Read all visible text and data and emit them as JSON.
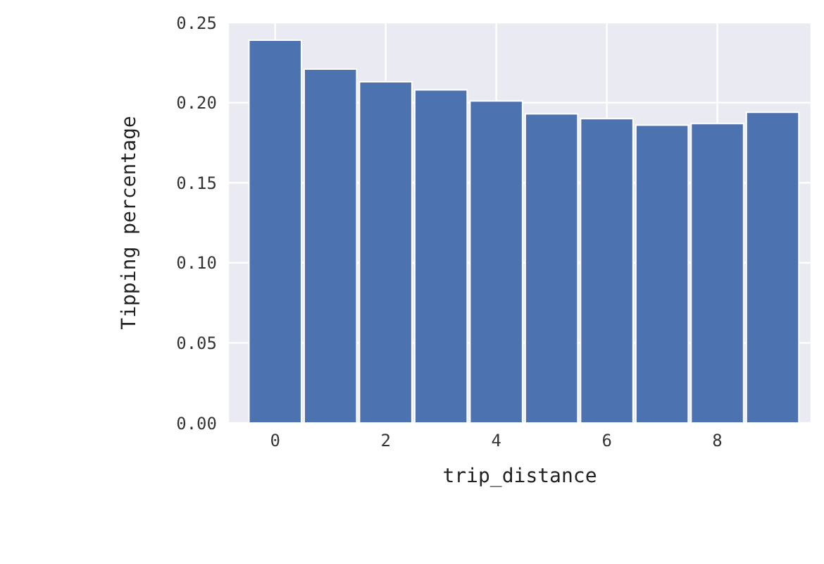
{
  "chart_data": {
    "type": "bar",
    "xlabel": "trip_distance",
    "ylabel": "Tipping percentage",
    "x": [
      0,
      1,
      2,
      3,
      4,
      5,
      6,
      7,
      8,
      9
    ],
    "values": [
      0.239,
      0.221,
      0.213,
      0.208,
      0.201,
      0.193,
      0.19,
      0.186,
      0.187,
      0.194
    ],
    "color": "#4c72b0",
    "xlim": [
      -0.85,
      9.7
    ],
    "xticks": [
      0,
      2,
      4,
      6,
      8
    ],
    "ylim": [
      0,
      0.25
    ],
    "yticks": [
      {
        "value": 0,
        "label": "0.00"
      },
      {
        "value": 0.05,
        "label": "0.05"
      },
      {
        "value": 0.1,
        "label": "0.10"
      },
      {
        "value": 0.15,
        "label": "0.15"
      },
      {
        "value": 0.2,
        "label": "0.20"
      },
      {
        "value": 0.25,
        "label": "0.25"
      }
    ],
    "grid": true
  }
}
